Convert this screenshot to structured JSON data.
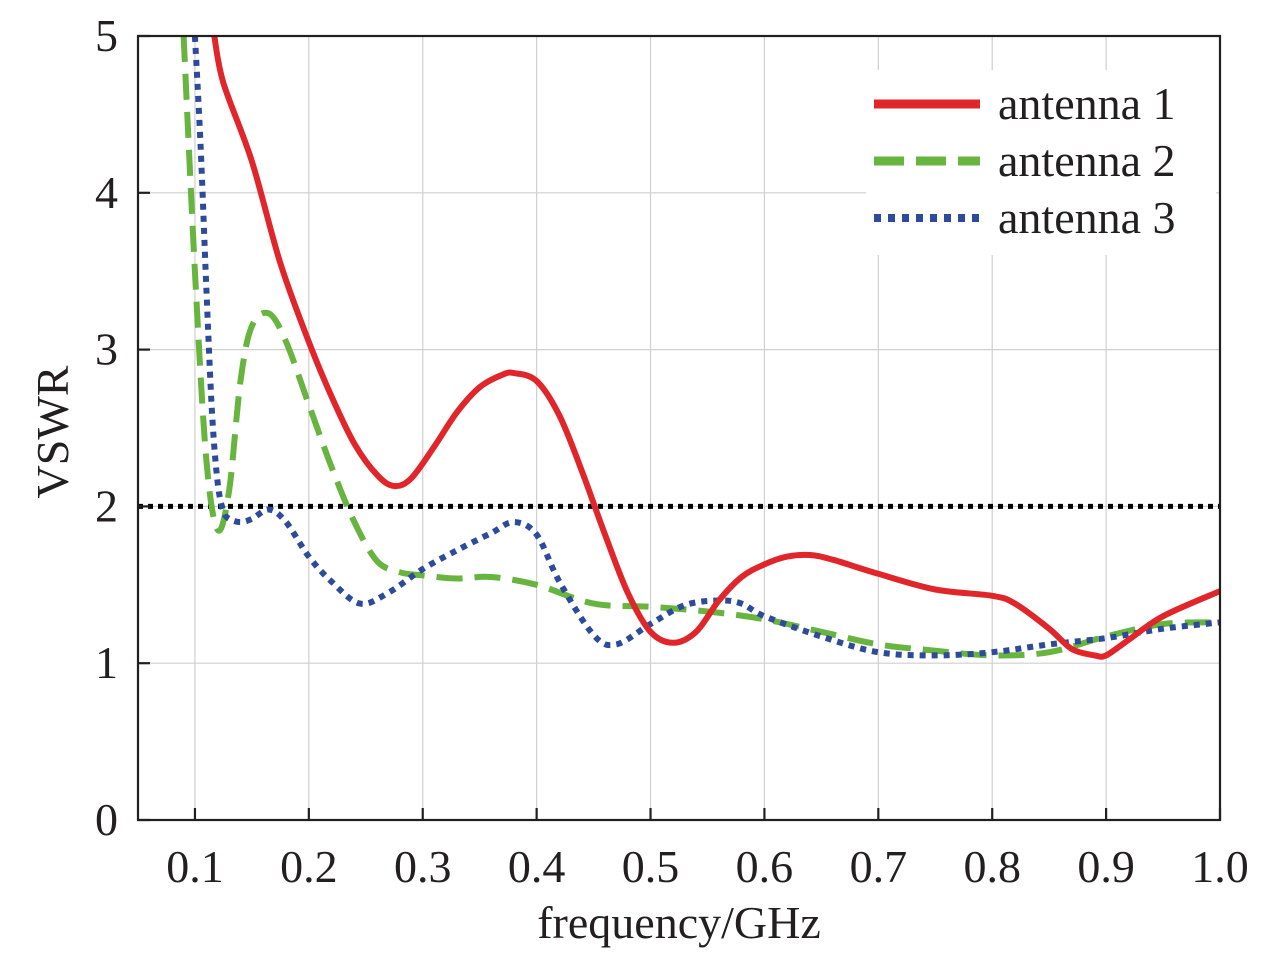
{
  "chart_data": {
    "type": "line",
    "title": "",
    "xlabel": "frequency/GHz",
    "ylabel": "VSWR",
    "xlim": [
      0.05,
      1.0
    ],
    "ylim": [
      0,
      5
    ],
    "x_ticks": [
      0.1,
      0.2,
      0.3,
      0.4,
      0.5,
      0.6,
      0.7,
      0.8,
      0.9,
      1.0
    ],
    "x_tick_labels": [
      "0.1",
      "0.2",
      "0.3",
      "0.4",
      "0.5",
      "0.6",
      "0.7",
      "0.8",
      "0.9",
      "1.0"
    ],
    "y_ticks": [
      0,
      1,
      2,
      3,
      4,
      5
    ],
    "y_tick_labels": [
      "0",
      "1",
      "2",
      "3",
      "4",
      "5"
    ],
    "grid": true,
    "legend_position": "top-right",
    "reference_line": {
      "y": 2,
      "style": "dotted",
      "color": "#000000"
    },
    "series": [
      {
        "name": "antenna 1",
        "color": "#e0262b",
        "style": "solid",
        "x": [
          0.117,
          0.125,
          0.15,
          0.175,
          0.2,
          0.22,
          0.24,
          0.26,
          0.275,
          0.29,
          0.31,
          0.33,
          0.35,
          0.37,
          0.38,
          0.4,
          0.42,
          0.44,
          0.46,
          0.48,
          0.5,
          0.52,
          0.54,
          0.56,
          0.58,
          0.6,
          0.62,
          0.64,
          0.66,
          0.7,
          0.75,
          0.8,
          0.82,
          0.85,
          0.87,
          0.89,
          0.9,
          0.92,
          0.95,
          1.0
        ],
        "y": [
          5.0,
          4.7,
          4.2,
          3.55,
          3.05,
          2.7,
          2.4,
          2.2,
          2.13,
          2.18,
          2.38,
          2.6,
          2.76,
          2.84,
          2.85,
          2.8,
          2.58,
          2.22,
          1.82,
          1.45,
          1.2,
          1.13,
          1.2,
          1.4,
          1.55,
          1.63,
          1.68,
          1.69,
          1.66,
          1.57,
          1.47,
          1.43,
          1.38,
          1.22,
          1.09,
          1.05,
          1.05,
          1.15,
          1.3,
          1.46
        ]
      },
      {
        "name": "antenna 2",
        "color": "#67b43f",
        "style": "dashed",
        "x": [
          0.09,
          0.1,
          0.11,
          0.12,
          0.13,
          0.14,
          0.15,
          0.165,
          0.18,
          0.2,
          0.22,
          0.24,
          0.26,
          0.28,
          0.3,
          0.33,
          0.36,
          0.4,
          0.45,
          0.5,
          0.55,
          0.6,
          0.65,
          0.7,
          0.75,
          0.8,
          0.85,
          0.9,
          0.95,
          1.0
        ],
        "y": [
          5.0,
          3.5,
          2.3,
          1.85,
          2.1,
          2.8,
          3.15,
          3.23,
          3.05,
          2.65,
          2.25,
          1.9,
          1.65,
          1.58,
          1.56,
          1.54,
          1.55,
          1.5,
          1.38,
          1.36,
          1.33,
          1.28,
          1.2,
          1.12,
          1.08,
          1.05,
          1.07,
          1.17,
          1.25,
          1.26
        ]
      },
      {
        "name": "antenna 3",
        "color": "#2d4a9b",
        "style": "dotted",
        "x": [
          0.1,
          0.105,
          0.11,
          0.115,
          0.12,
          0.125,
          0.13,
          0.14,
          0.15,
          0.165,
          0.18,
          0.2,
          0.22,
          0.245,
          0.27,
          0.3,
          0.33,
          0.36,
          0.38,
          0.4,
          0.42,
          0.45,
          0.47,
          0.5,
          0.53,
          0.56,
          0.58,
          0.6,
          0.65,
          0.7,
          0.75,
          0.8,
          0.85,
          0.9,
          0.95,
          1.0
        ],
        "y": [
          5.0,
          4.3,
          3.4,
          2.6,
          2.15,
          1.97,
          1.92,
          1.9,
          1.92,
          1.98,
          1.9,
          1.68,
          1.52,
          1.38,
          1.45,
          1.6,
          1.72,
          1.83,
          1.9,
          1.82,
          1.52,
          1.18,
          1.12,
          1.25,
          1.37,
          1.4,
          1.38,
          1.3,
          1.17,
          1.07,
          1.05,
          1.07,
          1.12,
          1.16,
          1.22,
          1.26
        ]
      }
    ]
  }
}
